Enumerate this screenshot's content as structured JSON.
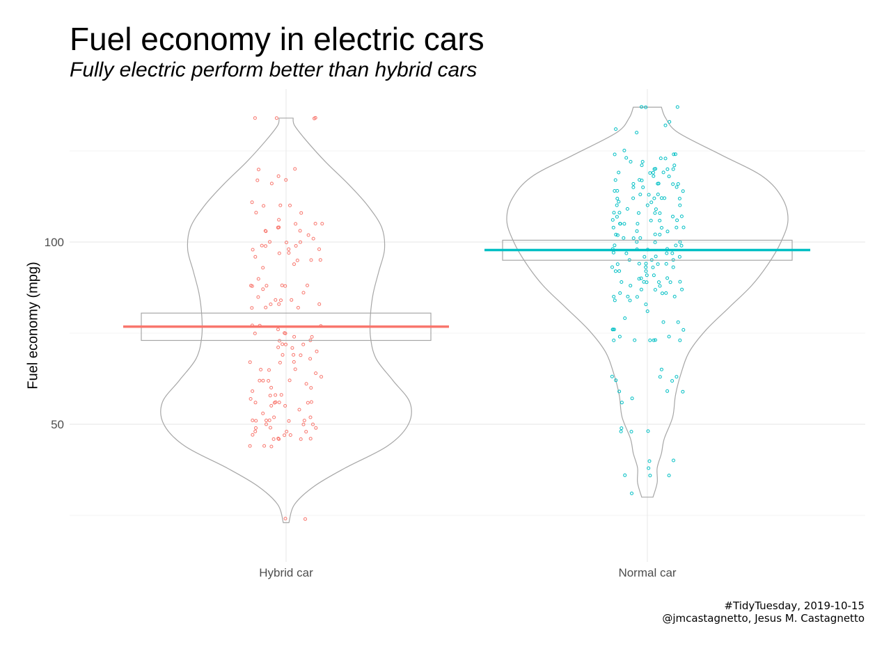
{
  "title": "Fuel economy in electric cars",
  "subtitle": "Fully electric perform better than hybrid cars",
  "caption": [
    "#TidyTuesday, 2019-10-15",
    "@jmcastagnetto, Jesus M. Castagnetto"
  ],
  "colors": {
    "hybrid": "#F8766D",
    "normal": "#00BFC4",
    "outline": "#a6a6a6",
    "grid": "#ebebeb"
  },
  "chart_data": {
    "type": "violin",
    "title": "Fuel economy in electric cars",
    "subtitle": "Fully electric perform better than hybrid cars",
    "xlabel": "",
    "ylabel": "Fuel economy (mpg)",
    "categories": [
      "Hybrid car",
      "Normal car"
    ],
    "y_ticks": [
      50,
      100
    ],
    "ylim": [
      21,
      151
    ],
    "grid": true,
    "legend": "none",
    "series": [
      {
        "category": "Hybrid car",
        "color": "#F8766D",
        "violin_range": [
          23,
          134
        ],
        "box": {
          "lower": 73,
          "upper": 80.5
        },
        "center_line": 76.8,
        "violin_profile": [
          [
            23,
            0.02
          ],
          [
            28,
            0.06
          ],
          [
            33,
            0.2
          ],
          [
            38,
            0.42
          ],
          [
            44,
            0.72
          ],
          [
            50,
            0.87
          ],
          [
            56,
            0.88
          ],
          [
            62,
            0.76
          ],
          [
            68,
            0.64
          ],
          [
            74,
            0.6
          ],
          [
            80,
            0.6
          ],
          [
            86,
            0.62
          ],
          [
            92,
            0.66
          ],
          [
            98,
            0.7
          ],
          [
            104,
            0.68
          ],
          [
            110,
            0.58
          ],
          [
            116,
            0.44
          ],
          [
            122,
            0.28
          ],
          [
            128,
            0.14
          ],
          [
            132,
            0.06
          ],
          [
            134,
            0.05
          ]
        ],
        "points": [
          134,
          134,
          134,
          134,
          120,
          120,
          118,
          117,
          117,
          116,
          111,
          110,
          110,
          110,
          108,
          108,
          106,
          105,
          105,
          105,
          104,
          104,
          104,
          103,
          103,
          103,
          102,
          101,
          100,
          100,
          100,
          99,
          99,
          99,
          98,
          98,
          98,
          97,
          97,
          96,
          95,
          95,
          95,
          94,
          93,
          90,
          88,
          88,
          88,
          88,
          88,
          88,
          87,
          86,
          85,
          84,
          84,
          84,
          83,
          83,
          83,
          82,
          82,
          82,
          77,
          77,
          77,
          76,
          75,
          75,
          75,
          74,
          74,
          73,
          73,
          72,
          72,
          72,
          71,
          71,
          70,
          69,
          69,
          69,
          68,
          67,
          67,
          67,
          65,
          65,
          65,
          64,
          63,
          62,
          62,
          62,
          62,
          61,
          60,
          60,
          59,
          58,
          58,
          58,
          57,
          56,
          56,
          56,
          56,
          56,
          56,
          55,
          55,
          54,
          53,
          52,
          52,
          51,
          51,
          51,
          51,
          51,
          51,
          50,
          50,
          50,
          49,
          49,
          49,
          48,
          48,
          48,
          47,
          47,
          47,
          46,
          46,
          46,
          46,
          46,
          44,
          44,
          44,
          24,
          24
        ]
      },
      {
        "category": "Normal car",
        "color": "#00BFC4",
        "violin_range": [
          30,
          137
        ],
        "box": {
          "lower": 95,
          "upper": 100.5
        },
        "center_line": 97.8,
        "violin_profile": [
          [
            30,
            0.04
          ],
          [
            34,
            0.07
          ],
          [
            38,
            0.07
          ],
          [
            42,
            0.1
          ],
          [
            46,
            0.12
          ],
          [
            52,
            0.18
          ],
          [
            58,
            0.2
          ],
          [
            64,
            0.24
          ],
          [
            70,
            0.3
          ],
          [
            76,
            0.42
          ],
          [
            82,
            0.58
          ],
          [
            88,
            0.74
          ],
          [
            94,
            0.86
          ],
          [
            100,
            0.95
          ],
          [
            106,
            1.0
          ],
          [
            112,
            0.96
          ],
          [
            118,
            0.82
          ],
          [
            124,
            0.52
          ],
          [
            130,
            0.22
          ],
          [
            134,
            0.13
          ],
          [
            137,
            0.1
          ]
        ],
        "points": [
          137,
          137,
          137,
          133,
          132,
          131,
          130,
          125,
          124,
          124,
          124,
          123,
          123,
          123,
          122,
          122,
          121,
          121,
          120,
          120,
          120,
          120,
          119,
          119,
          119,
          119,
          118,
          118,
          117,
          117,
          117,
          116,
          116,
          116,
          116,
          116,
          115,
          115,
          115,
          114,
          114,
          114,
          113,
          113,
          113,
          112,
          112,
          112,
          112,
          112,
          112,
          111,
          111,
          110,
          110,
          110,
          109,
          109,
          108,
          108,
          108,
          108,
          108,
          107,
          107,
          107,
          106,
          106,
          106,
          106,
          105,
          105,
          105,
          105,
          104,
          104,
          104,
          104,
          103,
          103,
          102,
          102,
          102,
          102,
          101,
          101,
          101,
          100,
          100,
          100,
          99,
          99,
          99,
          98,
          98,
          98,
          98,
          97,
          97,
          97,
          97,
          96,
          96,
          96,
          95,
          95,
          95,
          94,
          94,
          94,
          94,
          94,
          93,
          93,
          93,
          93,
          92,
          92,
          92,
          91,
          91,
          90,
          90,
          90,
          89,
          89,
          89,
          89,
          89,
          89,
          88,
          88,
          87,
          87,
          87,
          86,
          86,
          86,
          85,
          85,
          85,
          85,
          84,
          84,
          83,
          81,
          79,
          78,
          78,
          76,
          76,
          76,
          76,
          74,
          74,
          73,
          73,
          73,
          73,
          73,
          73,
          65,
          63,
          63,
          63,
          62,
          62,
          59,
          59,
          59,
          57,
          56,
          49,
          48,
          48,
          48,
          40,
          40,
          38,
          36,
          36,
          36,
          31
        ]
      }
    ]
  }
}
